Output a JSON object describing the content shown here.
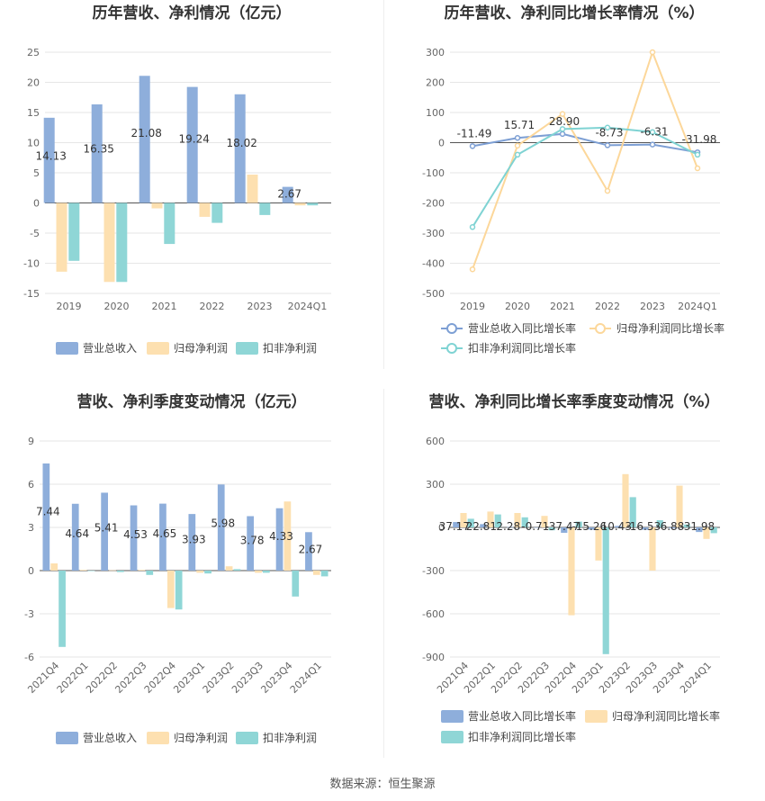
{
  "footer": "数据来源：恒生聚源",
  "colors": {
    "revenue": "#8eaedb",
    "net": "#fde0b0",
    "deducted": "#8fd6d6",
    "grid": "#e6e6e6",
    "zero": "#555555"
  },
  "chart_data": [
    {
      "type": "bar",
      "title": "历年营收、净利情况（亿元）",
      "categories": [
        "2019",
        "2020",
        "2021",
        "2022",
        "2023",
        "2024Q1"
      ],
      "ylim": [
        -15,
        25
      ],
      "yticks": [
        25,
        20,
        15,
        10,
        5,
        0,
        -5,
        -10,
        -15
      ],
      "series": [
        {
          "name": "营业总收入",
          "values": [
            14.13,
            16.35,
            21.08,
            19.24,
            18.02,
            2.67
          ],
          "labels": [
            "14.13",
            "16.35",
            "21.08",
            "19.24",
            "18.02",
            "2.67"
          ]
        },
        {
          "name": "归母净利润",
          "values": [
            -11.4,
            -13.1,
            -0.9,
            -2.3,
            4.7,
            -0.4
          ]
        },
        {
          "name": "扣非净利润",
          "values": [
            -9.6,
            -13.1,
            -6.8,
            -3.3,
            -2.0,
            -0.4
          ]
        }
      ],
      "grid": true,
      "legend": "bottom"
    },
    {
      "type": "line",
      "title": "历年营收、净利同比增长率情况（%）",
      "categories": [
        "2019",
        "2020",
        "2021",
        "2022",
        "2023",
        "2024Q1"
      ],
      "ylim": [
        -500,
        300
      ],
      "yticks": [
        300,
        200,
        100,
        0,
        -100,
        -200,
        -300,
        -400,
        -500
      ],
      "series": [
        {
          "name": "营业总收入同比增长率",
          "values": [
            -11.49,
            15.71,
            28.9,
            -8.73,
            -6.31,
            -31.98
          ],
          "labels": [
            "-11.49",
            "15.71",
            "28.90",
            "-8.73",
            "-6.31",
            "-31.98"
          ]
        },
        {
          "name": "归母净利润同比增长率",
          "values": [
            -420,
            -10,
            95,
            -160,
            300,
            -85
          ]
        },
        {
          "name": "扣非净利润同比增长率",
          "values": [
            -280,
            -40,
            45,
            50,
            35,
            -40
          ]
        }
      ],
      "grid": true,
      "legend": "bottom"
    },
    {
      "type": "bar",
      "title": "营收、净利季度变动情况（亿元）",
      "categories": [
        "2021Q4",
        "2022Q1",
        "2022Q2",
        "2022Q3",
        "2022Q4",
        "2023Q1",
        "2023Q2",
        "2023Q3",
        "2023Q4",
        "2024Q1"
      ],
      "ylim": [
        -6,
        9
      ],
      "yticks": [
        9,
        6,
        3,
        0,
        -3,
        -6
      ],
      "series": [
        {
          "name": "营业总收入",
          "values": [
            7.44,
            4.64,
            5.41,
            4.53,
            4.65,
            3.93,
            5.98,
            3.78,
            4.33,
            2.67
          ],
          "labels": [
            "7.44",
            "4.64",
            "5.41",
            "4.53",
            "4.65",
            "3.93",
            "5.98",
            "3.78",
            "4.33",
            "2.67"
          ]
        },
        {
          "name": "归母净利润",
          "values": [
            0.5,
            0.05,
            0.02,
            0.05,
            -2.6,
            -0.15,
            0.3,
            -0.15,
            4.8,
            -0.3
          ]
        },
        {
          "name": "扣非净利润",
          "values": [
            -5.3,
            0.0,
            -0.1,
            -0.3,
            -2.7,
            -0.2,
            0.1,
            -0.15,
            -1.8,
            -0.4
          ]
        }
      ],
      "grid": true,
      "legend": "bottom"
    },
    {
      "type": "bar",
      "title": "营收、净利同比增长率季度变动情况（%）",
      "categories": [
        "2021Q4",
        "2022Q1",
        "2022Q2",
        "2022Q3",
        "2022Q4",
        "2023Q1",
        "2023Q2",
        "2023Q3",
        "2023Q4",
        "2024Q1"
      ],
      "ylim": [
        -900,
        600
      ],
      "yticks": [
        600,
        300,
        0,
        -300,
        -600,
        -900
      ],
      "series": [
        {
          "name": "营业总收入同比增长率",
          "values": [
            37.17,
            22.81,
            2.28,
            -0.71,
            -37.47,
            -15.26,
            10.43,
            -16.53,
            -6.88,
            -31.98
          ],
          "labels": [
            "37.17",
            "22.81",
            "2.28",
            "-0.71",
            "-37.47",
            "-15.26",
            "10.43",
            "-16.53",
            "-6.88",
            "-31.98"
          ]
        },
        {
          "name": "归母净利润同比增长率",
          "values": [
            100,
            110,
            100,
            80,
            -610,
            -230,
            370,
            -300,
            290,
            -80
          ]
        },
        {
          "name": "扣非净利润同比增长率",
          "values": [
            60,
            90,
            70,
            -20,
            40,
            -880,
            210,
            50,
            20,
            -40
          ]
        }
      ],
      "grid": true,
      "legend": "bottom"
    }
  ]
}
